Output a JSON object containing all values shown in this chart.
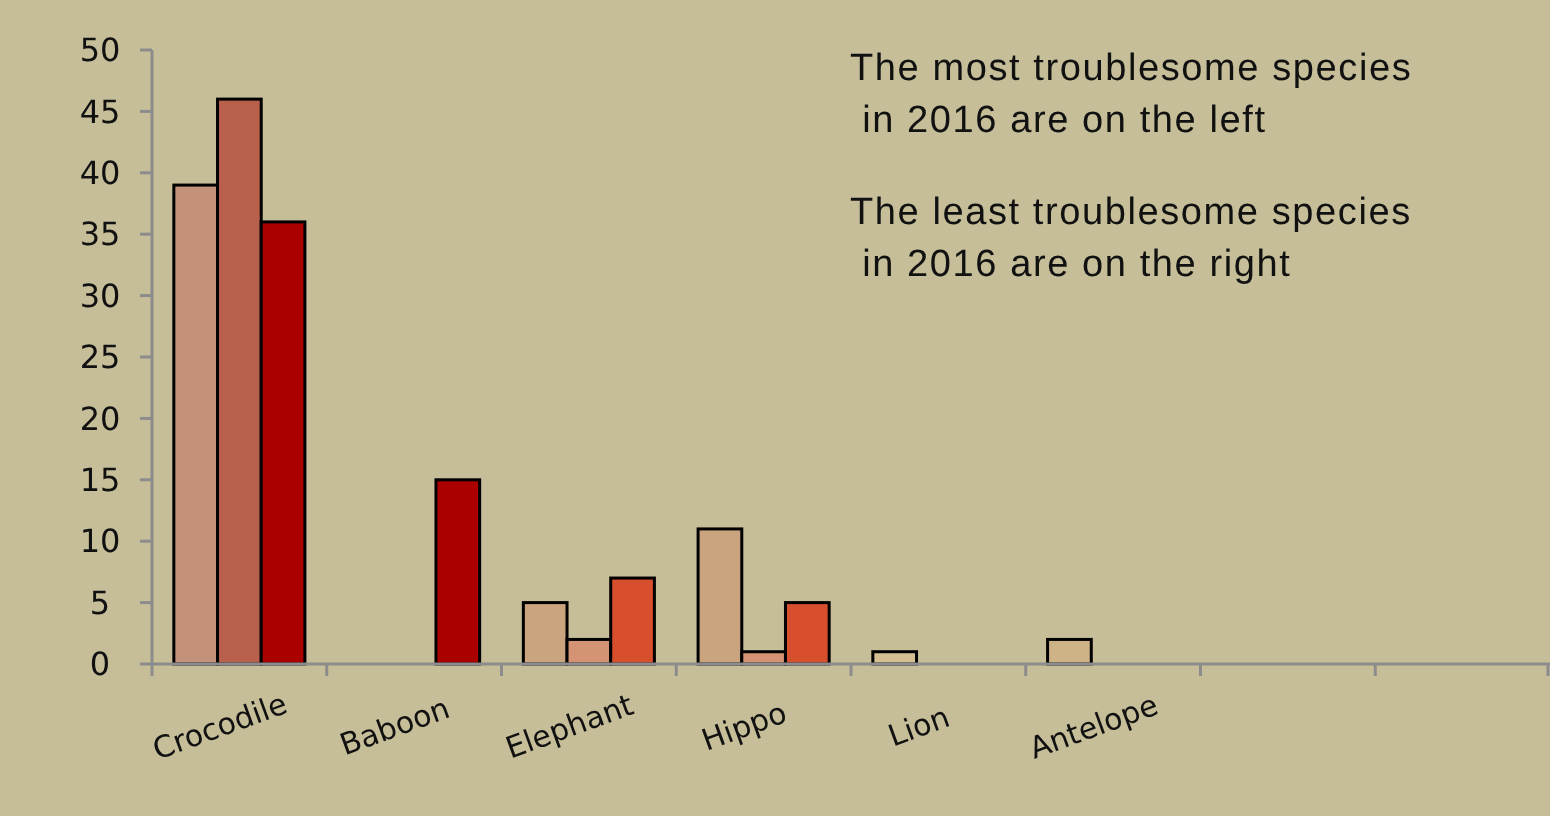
{
  "chart_data": {
    "type": "bar",
    "categories": [
      "Crocodile",
      "Baboon",
      "Elephant",
      "Hippo",
      "Lion",
      "Antelope",
      null,
      null
    ],
    "series": [
      {
        "values": [
          39,
          null,
          5,
          11,
          1,
          2,
          null,
          null
        ],
        "colors": [
          "#c4917a",
          null,
          "#caa37f",
          "#caa37f",
          "#d6bf92",
          "#cdb386",
          null,
          null
        ]
      },
      {
        "values": [
          46,
          null,
          2,
          1,
          null,
          null,
          null,
          null
        ],
        "colors": [
          "#b8604c",
          null,
          "#d49474",
          "#d49474",
          null,
          null,
          null,
          null
        ]
      },
      {
        "values": [
          36,
          15,
          7,
          5,
          null,
          null,
          null,
          null
        ],
        "colors": [
          "#aa0000",
          "#aa0000",
          "#d84f2e",
          "#d84f2e",
          null,
          null,
          null,
          null
        ]
      }
    ],
    "ylim": [
      0,
      50
    ],
    "yticks": [
      0,
      5,
      10,
      15,
      20,
      25,
      30,
      35,
      40,
      45,
      50
    ],
    "grid": false,
    "annotations": [
      "The most troublesome species\n in 2016 are on the left",
      "The least troublesome species\n in 2016 are on the right"
    ]
  }
}
